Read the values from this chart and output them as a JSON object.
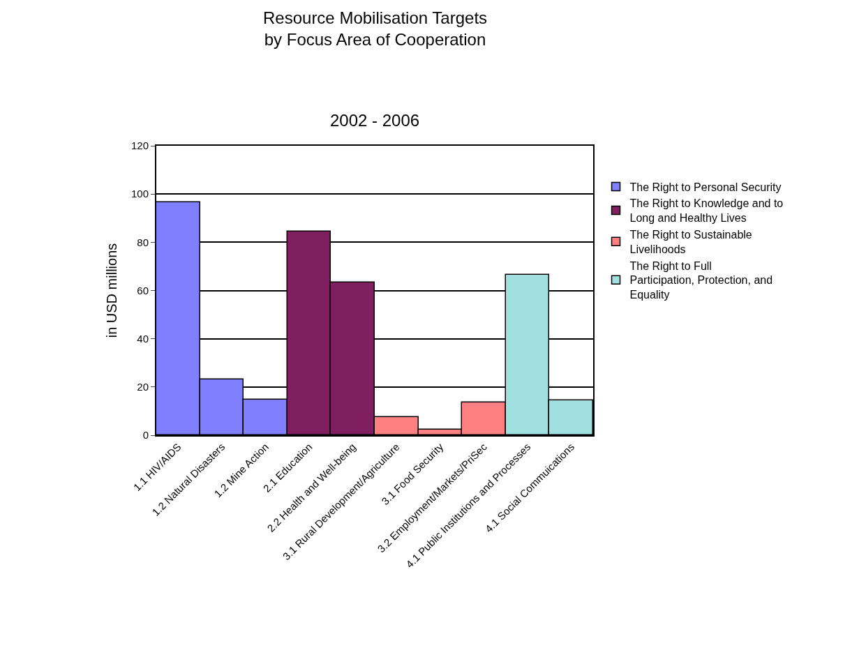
{
  "chart_data": {
    "type": "bar",
    "title": "Resource Mobilisation Targets\nby Focus Area of Cooperation",
    "subtitle": "2002 - 2006",
    "ylabel": "in USD millions",
    "categories": [
      "1.1 HIV/AIDS",
      "1.2 Natural Disasters",
      "1.2 Mine Action",
      "2.1 Education",
      "2.2 Health and Well-being",
      "3.1 Rural Development/Agriculture",
      "3.1 Food Security",
      "3.2 Employment/Markets/PriSec",
      "4.1 Public Institutions and Processes",
      "4.1 Social Commuications"
    ],
    "series": [
      {
        "name": "The Right to Personal Security",
        "color": "#7f7fff",
        "values": [
          96.7,
          23.1,
          14.8,
          null,
          null,
          null,
          null,
          null,
          null,
          null
        ]
      },
      {
        "name": "The Right to Knowledge and to Long and Healthy Lives",
        "color": "#7f1f5f",
        "values": [
          null,
          null,
          null,
          84.5,
          63.3,
          null,
          null,
          null,
          null,
          null
        ]
      },
      {
        "name": "The Right to Sustainable Livelihoods",
        "color": "#ff8080",
        "values": [
          null,
          null,
          null,
          null,
          null,
          7.6,
          2.2,
          13.5,
          null,
          null
        ]
      },
      {
        "name": "The Right to Full Participation, Protection, and Equality",
        "color": "#a0e0e0",
        "values": [
          null,
          null,
          null,
          null,
          null,
          null,
          null,
          null,
          66.4,
          14.6
        ]
      }
    ],
    "ylim": [
      0,
      120
    ],
    "yticks": [
      0,
      20,
      40,
      60,
      80,
      100,
      120
    ],
    "grid": "y",
    "legend": "right"
  }
}
